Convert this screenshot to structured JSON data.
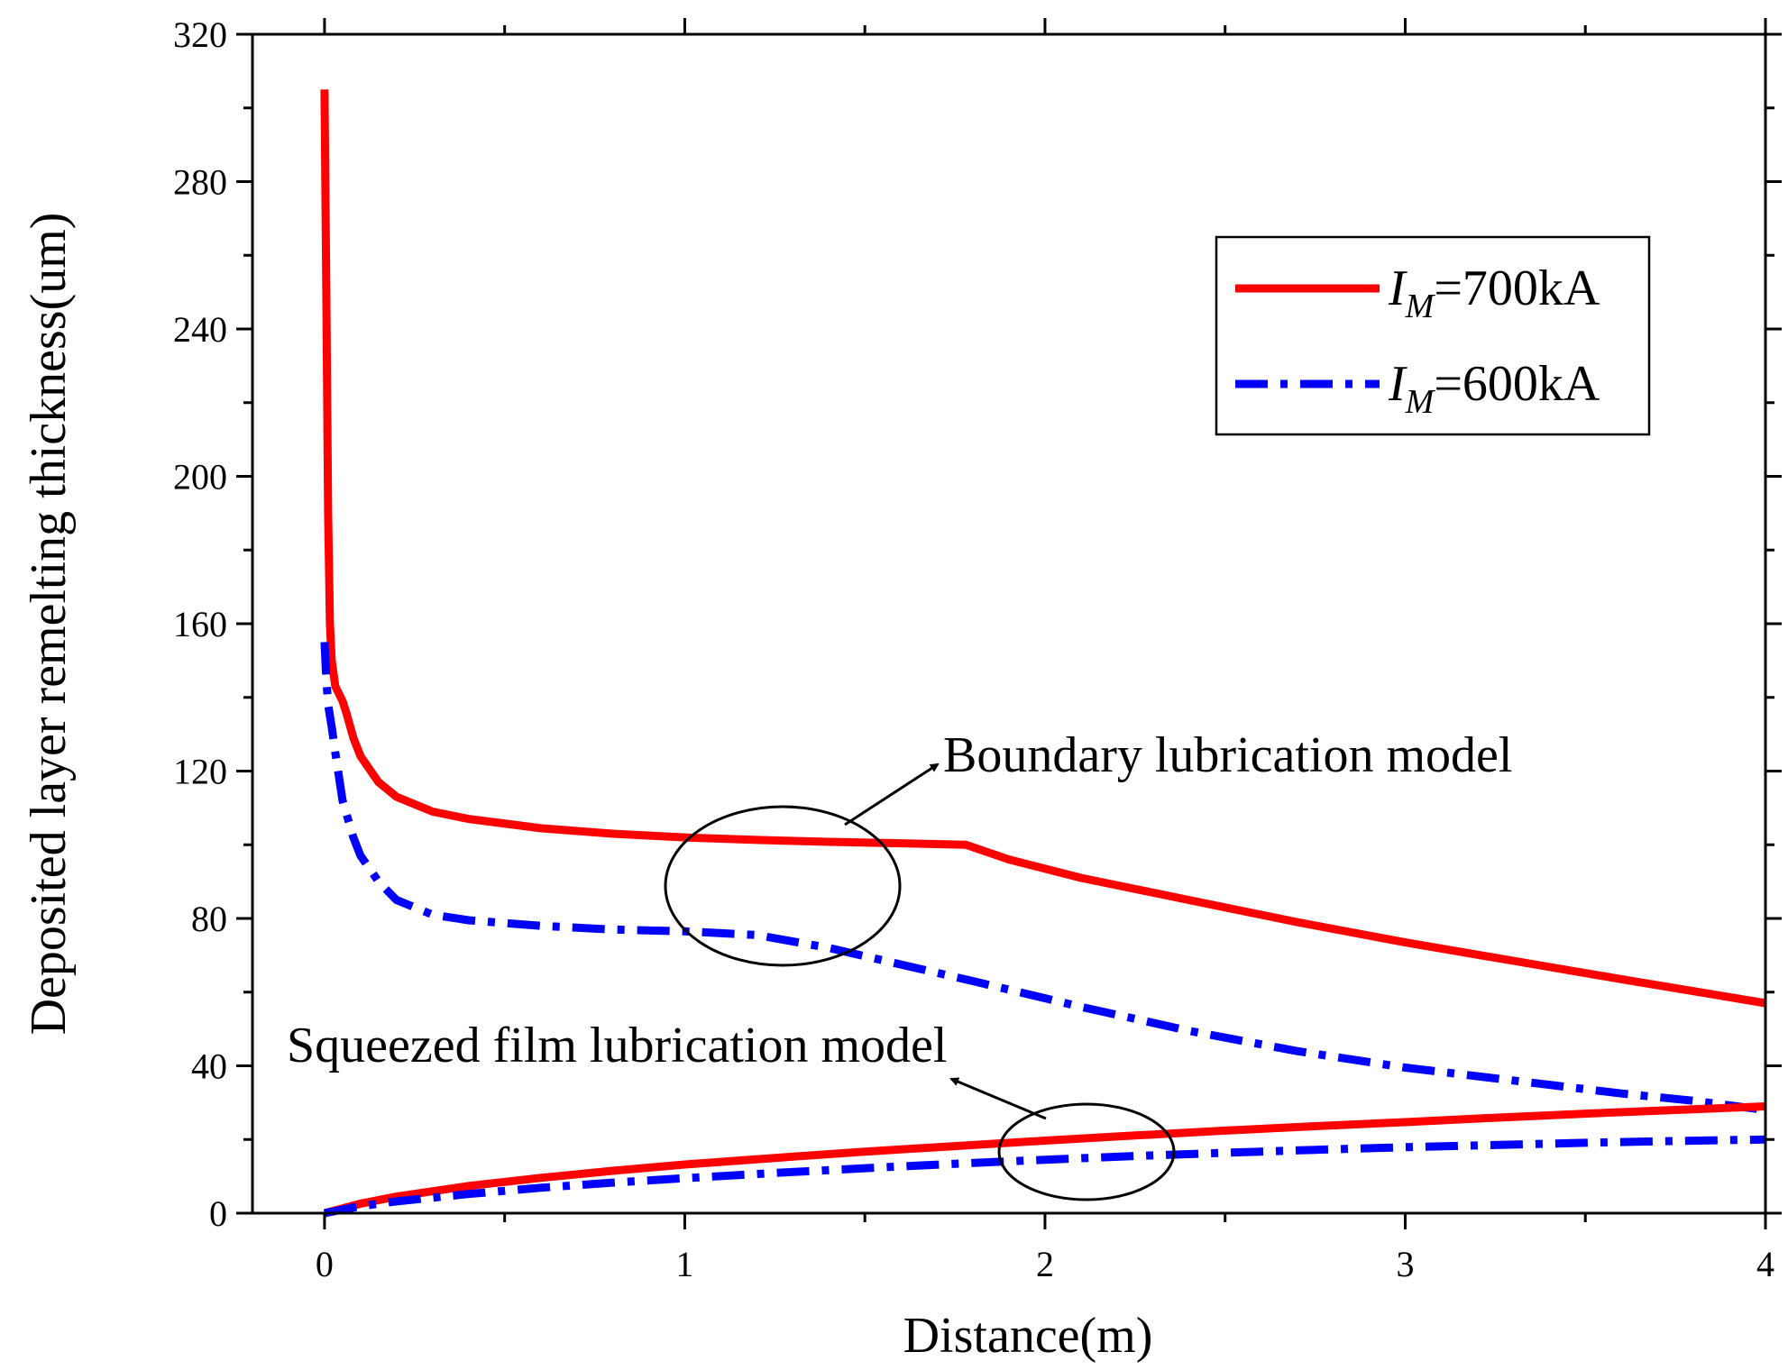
{
  "chart_data": {
    "type": "line",
    "title": "",
    "xlabel": "Distance(m)",
    "ylabel": "Deposited layer remelting thickness(um)",
    "xlim": [
      -0.2,
      4
    ],
    "ylim": [
      0,
      320
    ],
    "xticks": [
      0,
      1,
      2,
      3,
      4
    ],
    "xtick_labels": [
      "0",
      "1",
      "2",
      "3",
      "4"
    ],
    "yticks": [
      0,
      40,
      80,
      120,
      160,
      200,
      240,
      280,
      320
    ],
    "ytick_labels": [
      "0",
      "40",
      "80",
      "120",
      "160",
      "200",
      "240",
      "280",
      "320"
    ],
    "grid": false,
    "legend_position": "top-right",
    "series": [
      {
        "name": "I_M=700kA",
        "legend_prefix": "I",
        "legend_subscript": "M",
        "legend_suffix": "=700kA",
        "group": "Boundary lubrication model",
        "color": "#ff0000",
        "style": "solid",
        "x": [
          0,
          0.005,
          0.01,
          0.015,
          0.02,
          0.03,
          0.05,
          0.06,
          0.08,
          0.1,
          0.15,
          0.2,
          0.3,
          0.4,
          0.6,
          0.8,
          1.0,
          1.2,
          1.4,
          1.6,
          1.78,
          1.9,
          2.1,
          2.4,
          2.7,
          3.0,
          3.3,
          3.6,
          4.0
        ],
        "y": [
          305,
          250,
          190,
          160,
          150,
          143,
          139,
          136,
          129,
          124,
          117,
          113,
          109,
          107,
          104.5,
          103,
          102,
          101.3,
          100.8,
          100.4,
          100,
          96,
          91,
          85,
          79,
          73.5,
          68.5,
          63.5,
          57
        ]
      },
      {
        "name": "I_M=600kA",
        "legend_prefix": "I",
        "legend_subscript": "M",
        "legend_suffix": "=600kA",
        "group": "Boundary lubrication model",
        "color": "#0000ff",
        "style": "dash-dot",
        "x": [
          0,
          0.005,
          0.01,
          0.02,
          0.03,
          0.05,
          0.08,
          0.1,
          0.15,
          0.2,
          0.3,
          0.4,
          0.6,
          0.8,
          1.0,
          1.2,
          1.4,
          1.6,
          1.8,
          2.1,
          2.4,
          2.7,
          3.0,
          3.3,
          3.6,
          3.8,
          4.0
        ],
        "y": [
          155,
          145,
          138,
          132,
          125,
          112,
          102,
          97,
          90,
          85,
          81,
          79.5,
          78,
          77,
          76.5,
          75.5,
          72,
          67.5,
          63,
          56,
          49.5,
          44,
          39.5,
          36,
          32.5,
          30.5,
          28
        ]
      },
      {
        "name": "I_M=700kA",
        "group": "Squeezed film lubrication model",
        "color": "#ff0000",
        "style": "solid",
        "x": [
          0,
          0.1,
          0.2,
          0.4,
          0.6,
          0.8,
          1.0,
          1.25,
          1.5,
          1.75,
          2.0,
          2.25,
          2.5,
          2.75,
          3.0,
          3.25,
          3.5,
          3.75,
          4.0
        ],
        "y": [
          0,
          2.6,
          4.5,
          7.4,
          9.6,
          11.5,
          13.2,
          15.0,
          16.7,
          18.2,
          19.7,
          21.1,
          22.4,
          23.6,
          24.7,
          25.9,
          27.0,
          28.0,
          29.0
        ]
      },
      {
        "name": "I_M=600kA",
        "group": "Squeezed film lubrication model",
        "color": "#0000ff",
        "style": "dash-dot",
        "x": [
          0,
          0.1,
          0.2,
          0.4,
          0.6,
          0.8,
          1.0,
          1.25,
          1.5,
          1.75,
          2.0,
          2.25,
          2.5,
          2.75,
          3.0,
          3.25,
          3.5,
          3.75,
          4.0
        ],
        "y": [
          0,
          1.9,
          3.2,
          5.2,
          6.9,
          8.3,
          9.5,
          10.9,
          12.2,
          13.4,
          14.5,
          15.5,
          16.4,
          17.2,
          17.9,
          18.5,
          19.1,
          19.6,
          20.0
        ]
      }
    ],
    "annotations": [
      {
        "text": "Boundary lubrication model",
        "ellipse_center": [
          1.3,
          89
        ],
        "arrow_to_text": true
      },
      {
        "text": "Squeezed film lubrication model",
        "ellipse_center": [
          2.1,
          19
        ],
        "arrow_to_text": true
      }
    ]
  }
}
